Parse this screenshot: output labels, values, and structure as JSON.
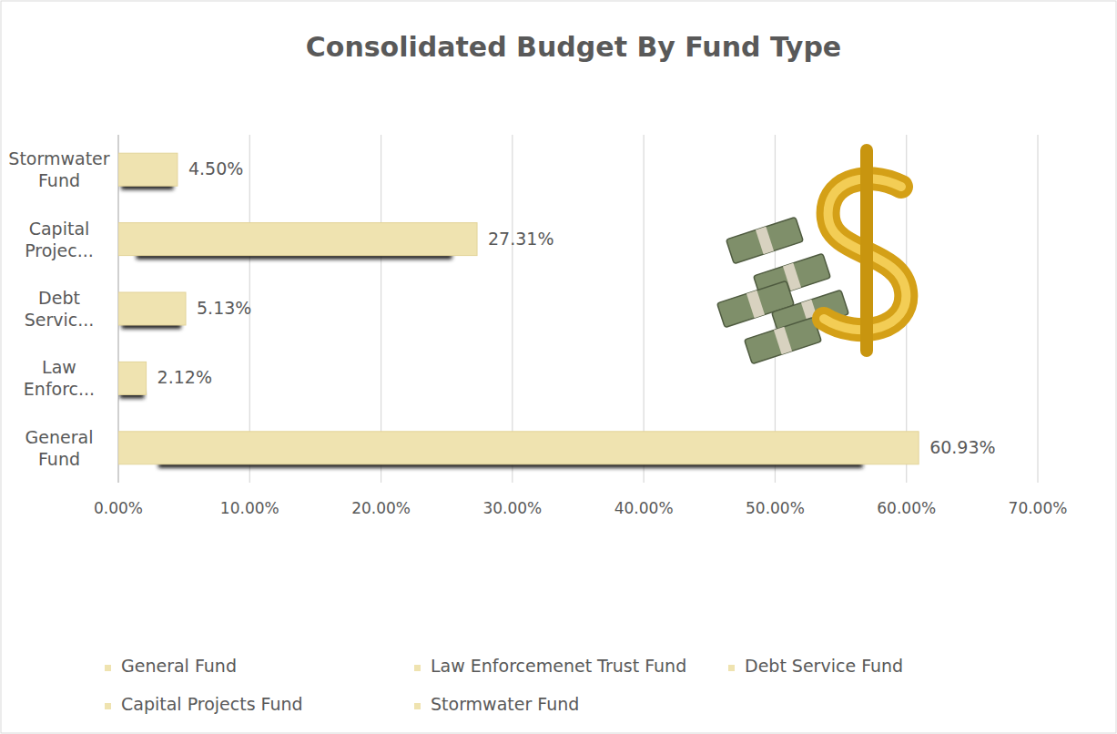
{
  "chart_data": {
    "type": "bar",
    "orientation": "horizontal",
    "title": "Consolidated Budget By Fund Type",
    "categories": [
      "General Fund",
      "Law Enforc...",
      "Debt Servic...",
      "Capital Projec...",
      "Stormwater Fund"
    ],
    "values": [
      60.93,
      2.12,
      5.13,
      27.31,
      4.5
    ],
    "value_labels": [
      "60.93%",
      "2.12%",
      "5.13%",
      "27.31%",
      "4.50%"
    ],
    "legend_labels": [
      "General Fund",
      "Law Enforcemenet Trust Fund",
      "Debt Service Fund",
      "Capital Projects Fund",
      "Stormwater Fund"
    ],
    "color": "#efe3b0",
    "xlim": [
      0,
      70
    ],
    "xticks": [
      {
        "value": 0,
        "label": "0.00%"
      },
      {
        "value": 10,
        "label": "10.00%"
      },
      {
        "value": 20,
        "label": "20.00%"
      },
      {
        "value": 30,
        "label": "30.00%"
      },
      {
        "value": 40,
        "label": "40.00%"
      },
      {
        "value": 50,
        "label": "50.00%"
      },
      {
        "value": 60,
        "label": "60.00%"
      },
      {
        "value": 70,
        "label": "70.00%"
      }
    ],
    "grid": true,
    "data_labels": true,
    "legend": "bottom"
  }
}
